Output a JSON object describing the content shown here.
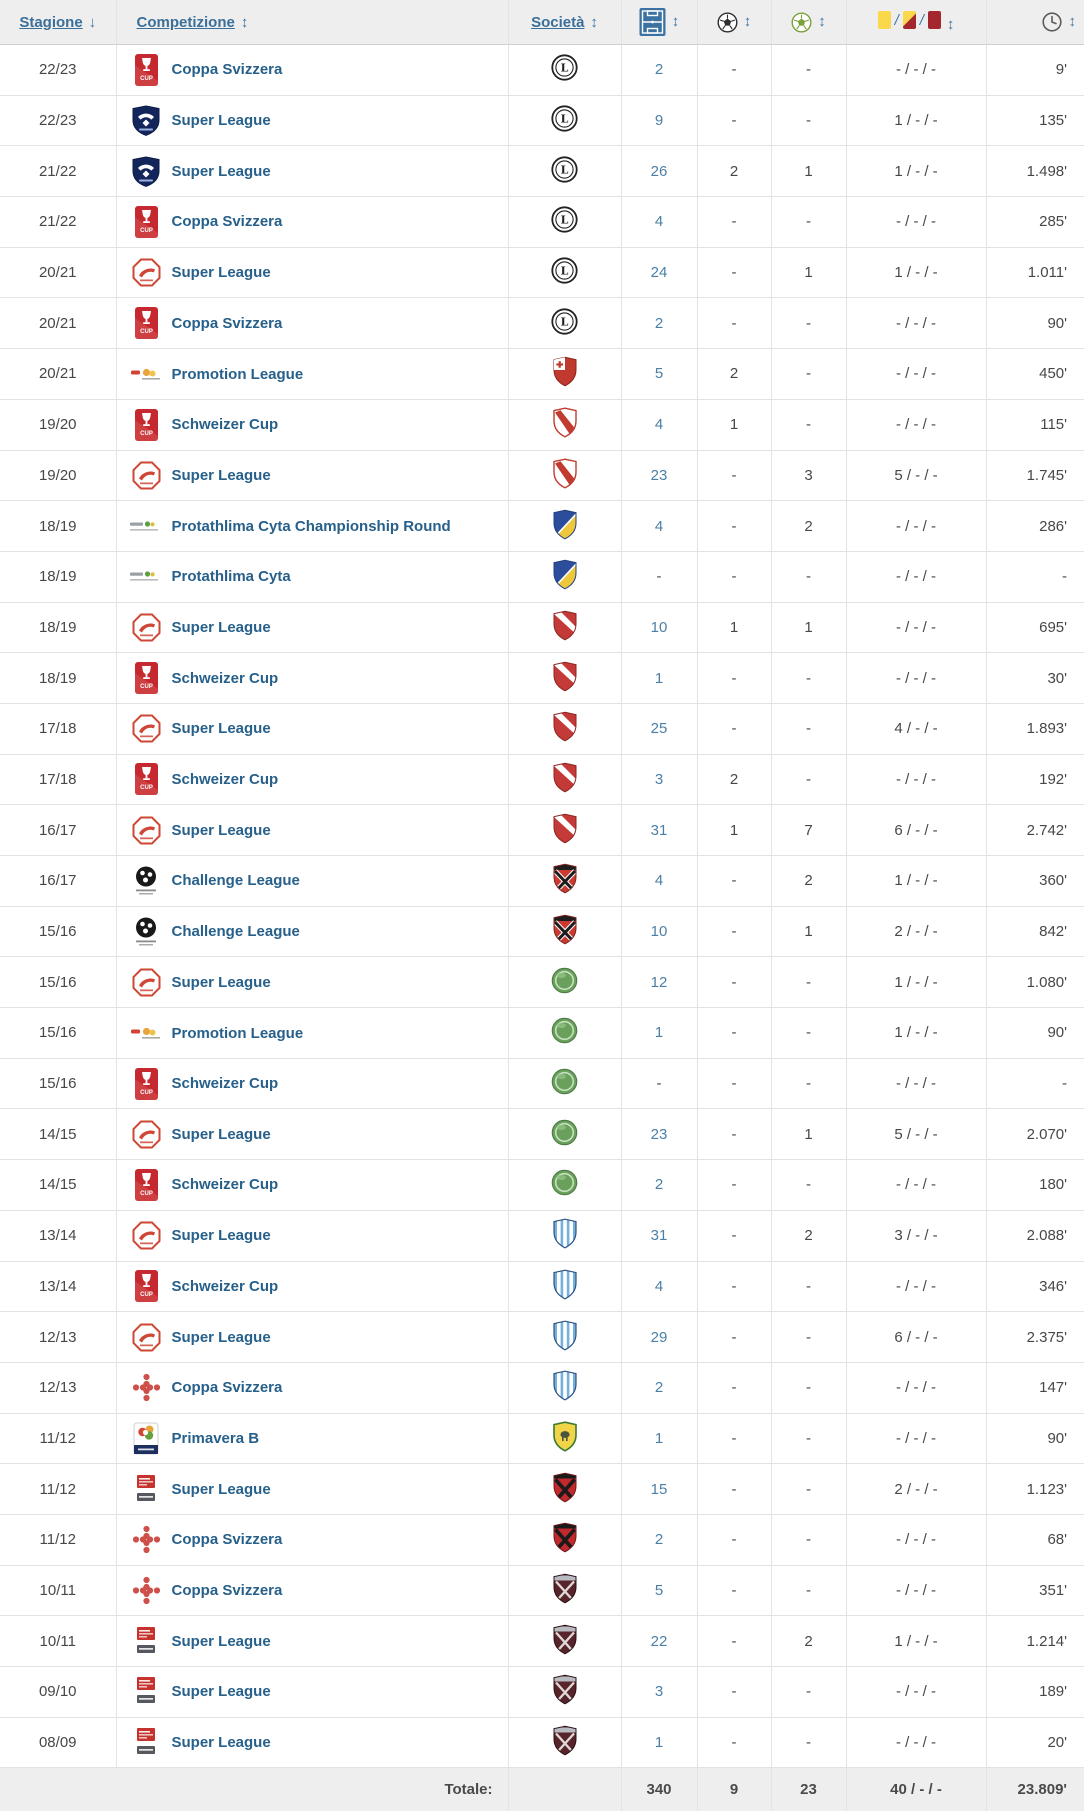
{
  "colors": {
    "header_bg": "#eeeeee",
    "footer_bg": "#eeeeee",
    "link_blue": "#27608a",
    "number_link_blue": "#4b7fa6",
    "sort_arrow_blue": "#3e76a4",
    "yellow_card": "#fbd84b",
    "red_card": "#a3272d",
    "text_gray": "#474747"
  },
  "table": {
    "header": {
      "columns": [
        {
          "key": "season",
          "label": "Stagione",
          "sort": "↓"
        },
        {
          "key": "competition",
          "label": "Competizione",
          "sort": "↕"
        },
        {
          "key": "club",
          "label": "Società",
          "sort": "↕"
        },
        {
          "key": "appearances",
          "icon": "pitch",
          "sort": "↕"
        },
        {
          "key": "goals",
          "icon": "ball",
          "sort": "↕"
        },
        {
          "key": "assists",
          "icon": "ball-green",
          "sort": "↕"
        },
        {
          "key": "cards",
          "icon": "cards",
          "sort": "↕"
        },
        {
          "key": "minutes",
          "icon": "clock",
          "sort": "↕"
        }
      ]
    },
    "rows": [
      {
        "season": "22/23",
        "competition": "Coppa Svizzera",
        "competition_icon": "swiss-cup",
        "club_icon": "lugano",
        "appearances": "2",
        "goals": "-",
        "assists": "-",
        "cards": "- / - / -",
        "minutes": "9'"
      },
      {
        "season": "22/23",
        "competition": "Super League",
        "competition_icon": "super-league-crest",
        "club_icon": "lugano",
        "appearances": "9",
        "goals": "-",
        "assists": "-",
        "cards": "1 / - / -",
        "minutes": "135'"
      },
      {
        "season": "21/22",
        "competition": "Super League",
        "competition_icon": "super-league-crest",
        "club_icon": "lugano",
        "appearances": "26",
        "goals": "2",
        "assists": "1",
        "cards": "1 / - / -",
        "minutes": "1.498'"
      },
      {
        "season": "21/22",
        "competition": "Coppa Svizzera",
        "competition_icon": "swiss-cup",
        "club_icon": "lugano",
        "appearances": "4",
        "goals": "-",
        "assists": "-",
        "cards": "- / - / -",
        "minutes": "285'"
      },
      {
        "season": "20/21",
        "competition": "Super League",
        "competition_icon": "super-league-octagon",
        "club_icon": "lugano",
        "appearances": "24",
        "goals": "-",
        "assists": "1",
        "cards": "1 / - / -",
        "minutes": "1.011'"
      },
      {
        "season": "20/21",
        "competition": "Coppa Svizzera",
        "competition_icon": "swiss-cup",
        "club_icon": "lugano",
        "appearances": "2",
        "goals": "-",
        "assists": "-",
        "cards": "- / - / -",
        "minutes": "90'"
      },
      {
        "season": "20/21",
        "competition": "Promotion League",
        "competition_icon": "promotion-league",
        "club_icon": "red-cross-shield",
        "appearances": "5",
        "goals": "2",
        "assists": "-",
        "cards": "- / - / -",
        "minutes": "450'"
      },
      {
        "season": "19/20",
        "competition": "Schweizer Cup",
        "competition_icon": "swiss-cup",
        "club_icon": "sion",
        "appearances": "4",
        "goals": "1",
        "assists": "-",
        "cards": "- / - / -",
        "minutes": "115'"
      },
      {
        "season": "19/20",
        "competition": "Super League",
        "competition_icon": "super-league-octagon",
        "club_icon": "sion",
        "appearances": "23",
        "goals": "-",
        "assists": "3",
        "cards": "5 / - / -",
        "minutes": "1.745'"
      },
      {
        "season": "18/19",
        "competition": "Protathlima Cyta Championship Round",
        "competition_icon": "protathlima-cyta",
        "club_icon": "apoel",
        "appearances": "4",
        "goals": "-",
        "assists": "2",
        "cards": "- / - / -",
        "minutes": "286'"
      },
      {
        "season": "18/19",
        "competition": "Protathlima Cyta",
        "competition_icon": "protathlima-cyta",
        "club_icon": "apoel",
        "appearances": "-",
        "goals": "-",
        "assists": "-",
        "cards": "- / - / -",
        "minutes": "-"
      },
      {
        "season": "18/19",
        "competition": "Super League",
        "competition_icon": "super-league-octagon",
        "club_icon": "thun",
        "appearances": "10",
        "goals": "1",
        "assists": "1",
        "cards": "- / - / -",
        "minutes": "695'"
      },
      {
        "season": "18/19",
        "competition": "Schweizer Cup",
        "competition_icon": "swiss-cup",
        "club_icon": "thun",
        "appearances": "1",
        "goals": "-",
        "assists": "-",
        "cards": "- / - / -",
        "minutes": "30'"
      },
      {
        "season": "17/18",
        "competition": "Super League",
        "competition_icon": "super-league-octagon",
        "club_icon": "thun",
        "appearances": "25",
        "goals": "-",
        "assists": "-",
        "cards": "4 / - / -",
        "minutes": "1.893'"
      },
      {
        "season": "17/18",
        "competition": "Schweizer Cup",
        "competition_icon": "swiss-cup",
        "club_icon": "thun",
        "appearances": "3",
        "goals": "2",
        "assists": "-",
        "cards": "- / - / -",
        "minutes": "192'"
      },
      {
        "season": "16/17",
        "competition": "Super League",
        "competition_icon": "super-league-octagon",
        "club_icon": "thun",
        "appearances": "31",
        "goals": "1",
        "assists": "7",
        "cards": "6 / - / -",
        "minutes": "2.742'"
      },
      {
        "season": "16/17",
        "competition": "Challenge League",
        "competition_icon": "challenge-league",
        "club_icon": "aarau",
        "appearances": "4",
        "goals": "-",
        "assists": "2",
        "cards": "1 / - / -",
        "minutes": "360'"
      },
      {
        "season": "15/16",
        "competition": "Challenge League",
        "competition_icon": "challenge-league",
        "club_icon": "aarau",
        "appearances": "10",
        "goals": "-",
        "assists": "1",
        "cards": "2 / - / -",
        "minutes": "842'"
      },
      {
        "season": "15/16",
        "competition": "Super League",
        "competition_icon": "super-league-octagon",
        "club_icon": "stgallen",
        "appearances": "12",
        "goals": "-",
        "assists": "-",
        "cards": "1 / - / -",
        "minutes": "1.080'"
      },
      {
        "season": "15/16",
        "competition": "Promotion League",
        "competition_icon": "promotion-league",
        "club_icon": "stgallen",
        "appearances": "1",
        "goals": "-",
        "assists": "-",
        "cards": "1 / - / -",
        "minutes": "90'"
      },
      {
        "season": "15/16",
        "competition": "Schweizer Cup",
        "competition_icon": "swiss-cup",
        "club_icon": "stgallen",
        "appearances": "-",
        "goals": "-",
        "assists": "-",
        "cards": "- / - / -",
        "minutes": "-"
      },
      {
        "season": "14/15",
        "competition": "Super League",
        "competition_icon": "super-league-octagon",
        "club_icon": "stgallen",
        "appearances": "23",
        "goals": "-",
        "assists": "1",
        "cards": "5 / - / -",
        "minutes": "2.070'"
      },
      {
        "season": "14/15",
        "competition": "Schweizer Cup",
        "competition_icon": "swiss-cup",
        "club_icon": "stgallen",
        "appearances": "2",
        "goals": "-",
        "assists": "-",
        "cards": "- / - / -",
        "minutes": "180'"
      },
      {
        "season": "13/14",
        "competition": "Super League",
        "competition_icon": "super-league-octagon",
        "club_icon": "lausanne",
        "appearances": "31",
        "goals": "-",
        "assists": "2",
        "cards": "3 / - / -",
        "minutes": "2.088'"
      },
      {
        "season": "13/14",
        "competition": "Schweizer Cup",
        "competition_icon": "swiss-cup",
        "club_icon": "lausanne",
        "appearances": "4",
        "goals": "-",
        "assists": "-",
        "cards": "- / - / -",
        "minutes": "346'"
      },
      {
        "season": "12/13",
        "competition": "Super League",
        "competition_icon": "super-league-octagon",
        "club_icon": "lausanne",
        "appearances": "29",
        "goals": "-",
        "assists": "-",
        "cards": "6 / - / -",
        "minutes": "2.375'"
      },
      {
        "season": "12/13",
        "competition": "Coppa Svizzera",
        "competition_icon": "coppa-figures",
        "club_icon": "lausanne",
        "appearances": "2",
        "goals": "-",
        "assists": "-",
        "cards": "- / - / -",
        "minutes": "147'"
      },
      {
        "season": "11/12",
        "competition": "Primavera B",
        "competition_icon": "primavera-b",
        "club_icon": "chievo",
        "appearances": "1",
        "goals": "-",
        "assists": "-",
        "cards": "- / - / -",
        "minutes": "90'"
      },
      {
        "season": "11/12",
        "competition": "Super League",
        "competition_icon": "super-league-axpo",
        "club_icon": "xamax",
        "appearances": "15",
        "goals": "-",
        "assists": "-",
        "cards": "2 / - / -",
        "minutes": "1.123'"
      },
      {
        "season": "11/12",
        "competition": "Coppa Svizzera",
        "competition_icon": "coppa-figures",
        "club_icon": "xamax",
        "appearances": "2",
        "goals": "-",
        "assists": "-",
        "cards": "- / - / -",
        "minutes": "68'"
      },
      {
        "season": "10/11",
        "competition": "Coppa Svizzera",
        "competition_icon": "coppa-figures",
        "club_icon": "servette",
        "appearances": "5",
        "goals": "-",
        "assists": "-",
        "cards": "- / - / -",
        "minutes": "351'"
      },
      {
        "season": "10/11",
        "competition": "Super League",
        "competition_icon": "super-league-axpo",
        "club_icon": "servette",
        "appearances": "22",
        "goals": "-",
        "assists": "2",
        "cards": "1 / - / -",
        "minutes": "1.214'"
      },
      {
        "season": "09/10",
        "competition": "Super League",
        "competition_icon": "super-league-axpo",
        "club_icon": "servette",
        "appearances": "3",
        "goals": "-",
        "assists": "-",
        "cards": "- / - / -",
        "minutes": "189'"
      },
      {
        "season": "08/09",
        "competition": "Super League",
        "competition_icon": "super-league-axpo",
        "club_icon": "servette",
        "appearances": "1",
        "goals": "-",
        "assists": "-",
        "cards": "- / - / -",
        "minutes": "20'"
      }
    ],
    "footer": {
      "label": "Totale:",
      "appearances": "340",
      "goals": "9",
      "assists": "23",
      "cards": "40 / - / -",
      "minutes": "23.809'"
    }
  }
}
